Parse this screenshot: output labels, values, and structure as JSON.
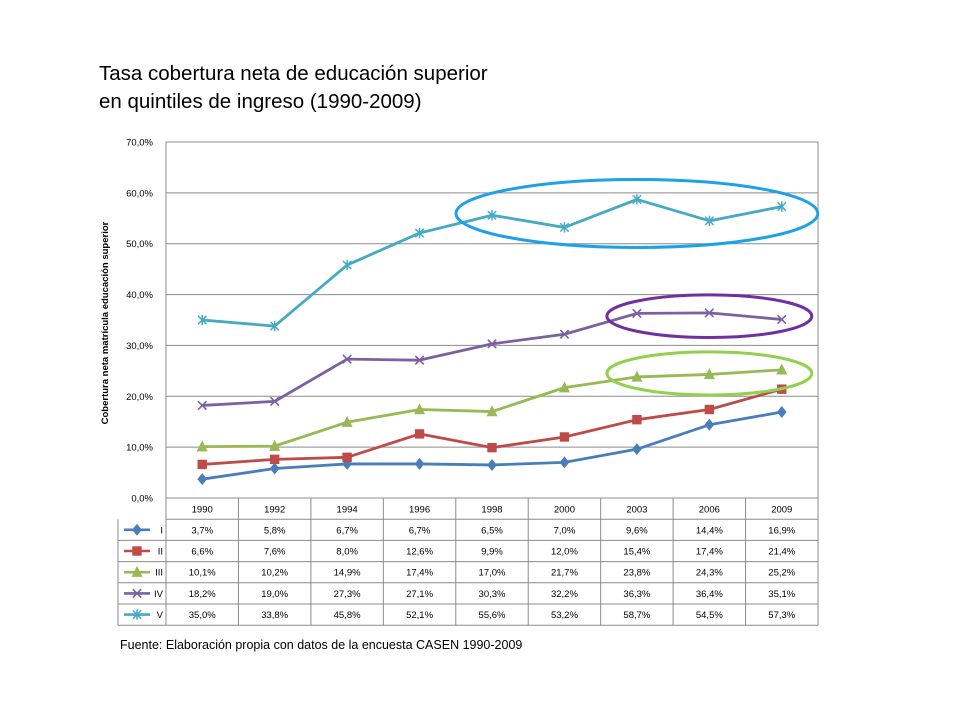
{
  "title_lines": [
    "Tasa cobertura neta de educación superior",
    "en quintiles de ingreso (1990-2009)"
  ],
  "source": "Fuente: Elaboración propia con datos de la encuesta CASEN 1990-2009",
  "chart_data": {
    "type": "line",
    "title": "Tasa cobertura neta de educación superior en quintiles de ingreso (1990-2009)",
    "ylabel": "Cobertura neta matrícula educación superior",
    "xlabel": "",
    "ylim": [
      0,
      70
    ],
    "ytick_labels": [
      "0,0%",
      "10,0%",
      "20,0%",
      "30,0%",
      "40,0%",
      "50,0%",
      "60,0%",
      "70,0%"
    ],
    "categories": [
      "1990",
      "1992",
      "1994",
      "1996",
      "1998",
      "2000",
      "2003",
      "2006",
      "2009"
    ],
    "grid": "horizontal",
    "legend": "data-table-left",
    "series": [
      {
        "name": "I",
        "color": "#4a7ebb",
        "marker": "diamond",
        "values": [
          3.7,
          5.8,
          6.7,
          6.7,
          6.5,
          7.0,
          9.6,
          14.4,
          16.9
        ],
        "labels": [
          "3,7%",
          "5,8%",
          "6,7%",
          "6,7%",
          "6,5%",
          "7,0%",
          "9,6%",
          "14,4%",
          "16,9%"
        ]
      },
      {
        "name": "II",
        "color": "#be4b48",
        "marker": "square",
        "values": [
          6.6,
          7.6,
          8.0,
          12.6,
          9.9,
          12.0,
          15.4,
          17.4,
          21.4
        ],
        "labels": [
          "6,6%",
          "7,6%",
          "8,0%",
          "12,6%",
          "9,9%",
          "12,0%",
          "15,4%",
          "17,4%",
          "21,4%"
        ]
      },
      {
        "name": "III",
        "color": "#98b954",
        "marker": "triangle",
        "values": [
          10.1,
          10.2,
          14.9,
          17.4,
          17.0,
          21.7,
          23.8,
          24.3,
          25.2
        ],
        "labels": [
          "10,1%",
          "10,2%",
          "14,9%",
          "17,4%",
          "17,0%",
          "21,7%",
          "23,8%",
          "24,3%",
          "25,2%"
        ]
      },
      {
        "name": "IV",
        "color": "#7d60a0",
        "marker": "x",
        "values": [
          18.2,
          19.0,
          27.3,
          27.1,
          30.3,
          32.2,
          36.3,
          36.4,
          35.1
        ],
        "labels": [
          "18,2%",
          "19,0%",
          "27,3%",
          "27,1%",
          "30,3%",
          "32,2%",
          "36,3%",
          "36,4%",
          "35,1%"
        ]
      },
      {
        "name": "V",
        "color": "#46aac5",
        "marker": "star",
        "values": [
          35.0,
          33.8,
          45.8,
          52.1,
          55.6,
          53.2,
          58.7,
          54.5,
          57.3
        ],
        "labels": [
          "35,0%",
          "33,8%",
          "45,8%",
          "52,1%",
          "55,6%",
          "53,2%",
          "58,7%",
          "54,5%",
          "57,3%"
        ]
      }
    ],
    "annotations": [
      {
        "type": "ellipse",
        "series": "V",
        "color": "#1ea1e6"
      },
      {
        "type": "ellipse",
        "series": "IV",
        "color": "#7030a0"
      },
      {
        "type": "ellipse",
        "series": "III",
        "color": "#92d050"
      }
    ]
  }
}
